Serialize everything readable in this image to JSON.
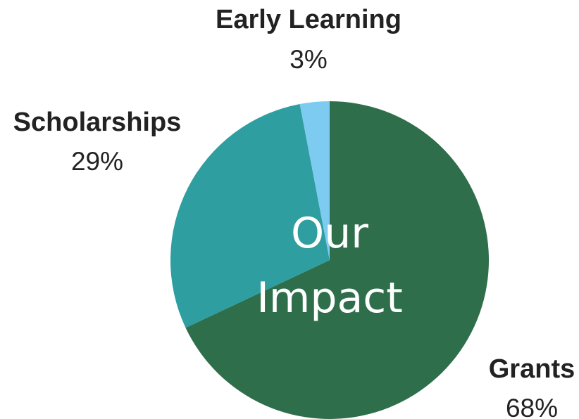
{
  "chart_data": {
    "type": "pie",
    "title": "Our Impact",
    "categories": [
      "Grants",
      "Scholarships",
      "Early Learning"
    ],
    "values": [
      68,
      29,
      3
    ],
    "value_labels": [
      "68%",
      "29%",
      "3%"
    ],
    "colors": [
      "#2f6e4b",
      "#2e9ea0",
      "#7ecbf2"
    ]
  }
}
